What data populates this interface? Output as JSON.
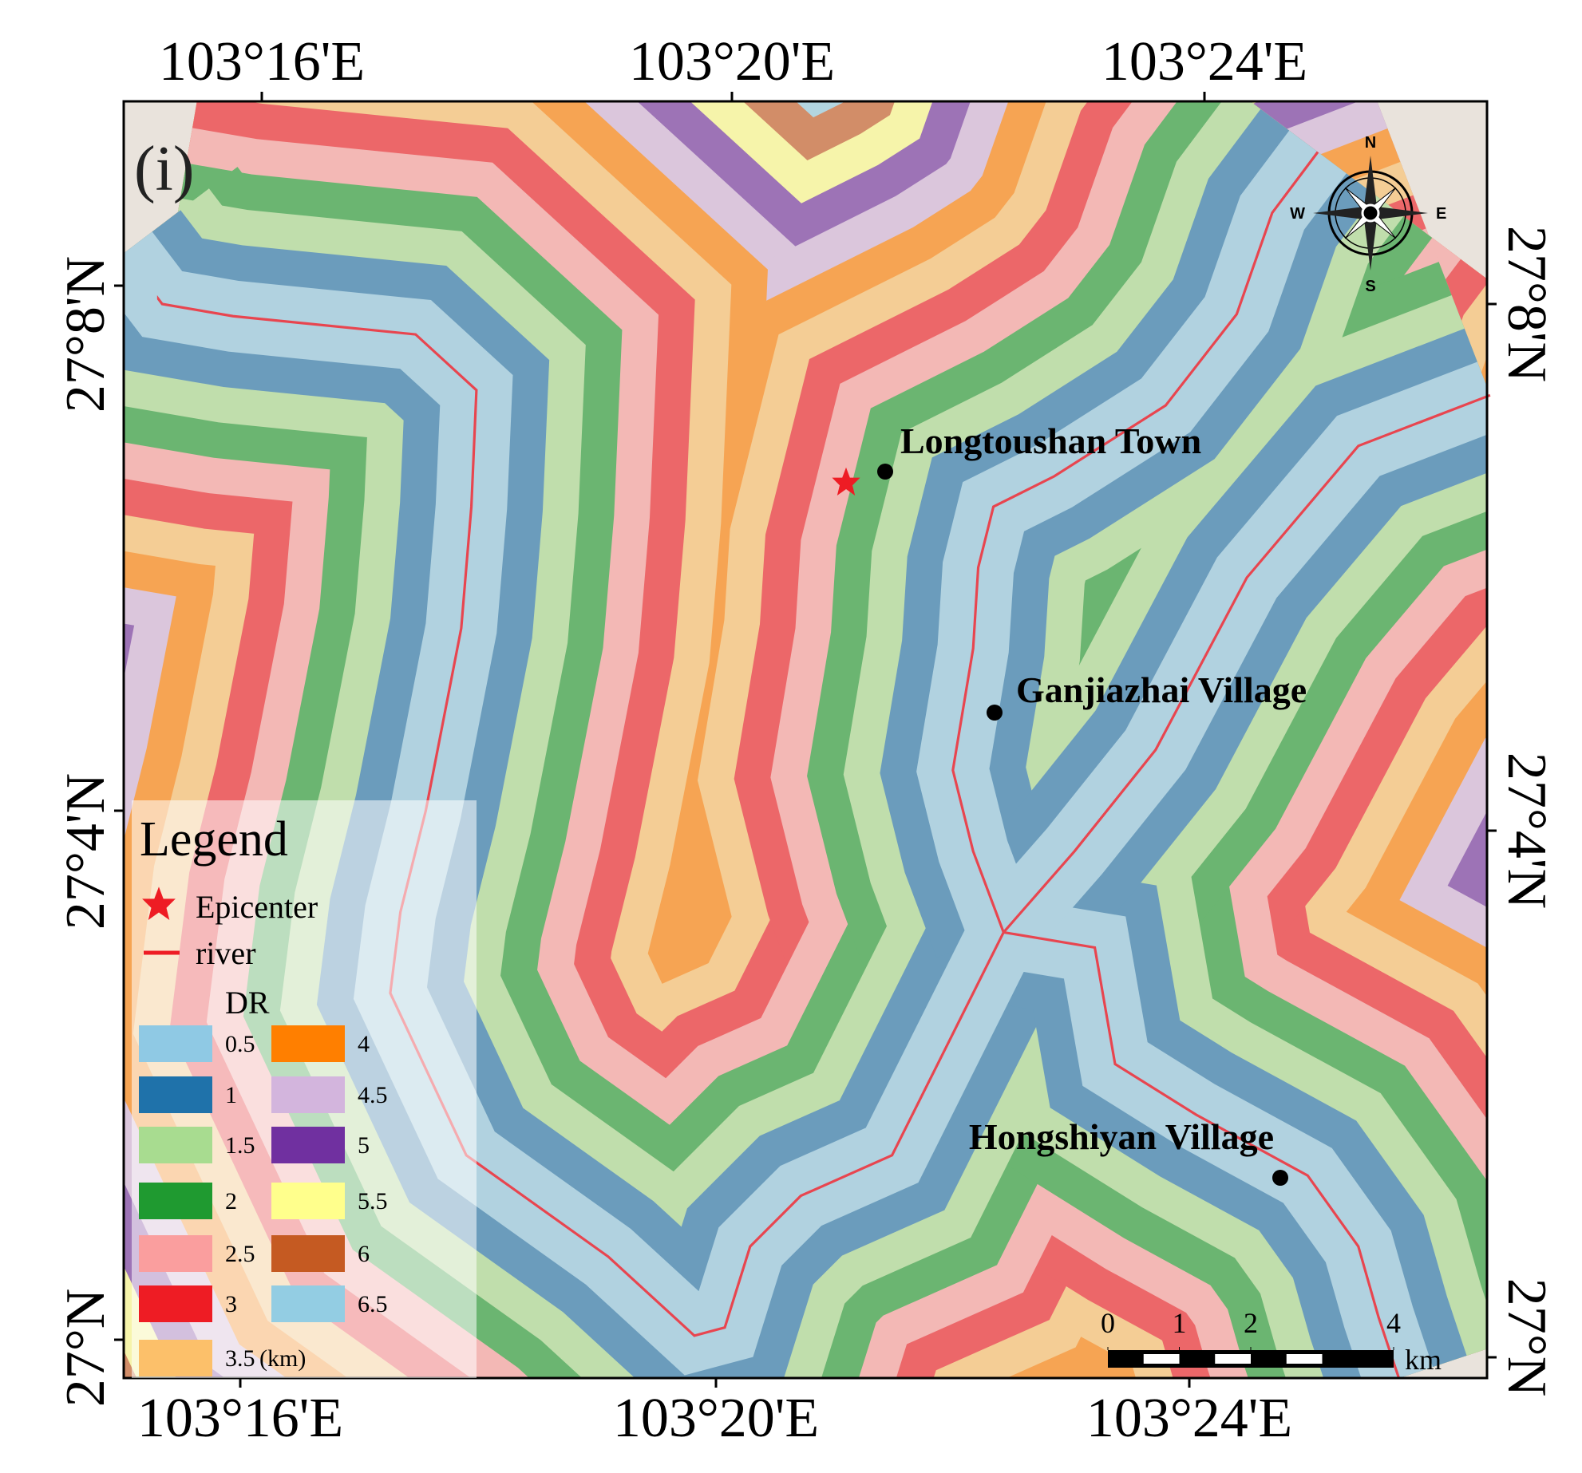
{
  "panel_label": "(i)",
  "axes": {
    "top": [
      "103°16'E",
      "103°20'E",
      "103°24'E"
    ],
    "bottom": [
      "103°16'E",
      "103°20'E",
      "103°24'E"
    ],
    "left": [
      "27°8'N",
      "27°4'N",
      "27°N"
    ],
    "right": [
      "27°8'N",
      "27°4'N",
      "27°N"
    ]
  },
  "places": [
    {
      "label": "Longtoushan Town"
    },
    {
      "label": "Ganjiazhai Village"
    },
    {
      "label": "Hongshiyan Village"
    }
  ],
  "legend": {
    "title": "Legend",
    "epicenter": "Epicenter",
    "river": "river",
    "dr_title": "DR",
    "unit": "(km)",
    "classes": [
      {
        "value": 0.5,
        "color": "#8fc9e4"
      },
      {
        "value": 1,
        "color": "#1f72aa"
      },
      {
        "value": 1.5,
        "color": "#a8dc90"
      },
      {
        "value": 2,
        "color": "#1f9a30"
      },
      {
        "value": 2.5,
        "color": "#fa9e9e"
      },
      {
        "value": 3,
        "color": "#ee1c24"
      },
      {
        "value": 3.5,
        "color": "#fcc06a"
      },
      {
        "value": 4,
        "color": "#ff7f00"
      },
      {
        "value": 4.5,
        "color": "#d3b5dd"
      },
      {
        "value": 5,
        "color": "#7030a0"
      },
      {
        "value": 5.5,
        "color": "#ffff8c"
      },
      {
        "value": 6,
        "color": "#c55a22"
      },
      {
        "value": 6.5,
        "color": "#93cde3"
      }
    ]
  },
  "scale_bar": {
    "ticks": [
      0,
      1,
      2,
      4
    ],
    "unit": "km"
  },
  "compass": {
    "n": "N",
    "s": "S",
    "e": "E",
    "w": "W"
  }
}
